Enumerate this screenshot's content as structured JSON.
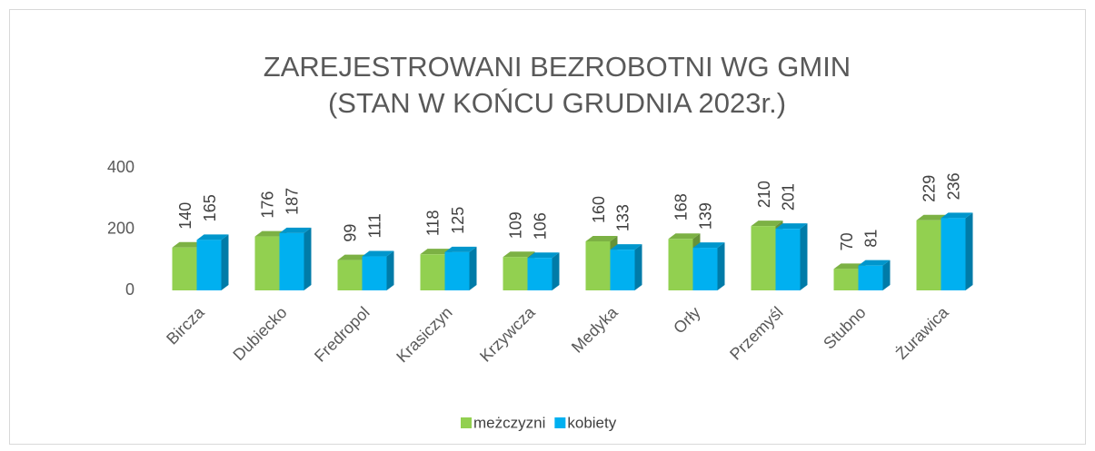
{
  "chart_data": {
    "type": "bar3d",
    "title": [
      "ZAREJESTROWANI BEZROBOTNI WG GMIN",
      "(STAN W KOŃCU GRUDNIA 2023r.)"
    ],
    "categories": [
      "Bircza",
      "Dubiecko",
      "Fredropol",
      "Krasiczyn",
      "Krzywcza",
      "Medyka",
      "Orły",
      "Przemyśl",
      "Stubno",
      "Żurawica"
    ],
    "series": [
      {
        "name": "meżczyzni",
        "color": "#92d050",
        "values": [
          140,
          176,
          99,
          118,
          109,
          160,
          168,
          210,
          70,
          229
        ]
      },
      {
        "name": "kobiety",
        "color": "#00b0f0",
        "values": [
          165,
          187,
          111,
          125,
          106,
          133,
          139,
          201,
          81,
          236
        ]
      }
    ],
    "ylim": [
      0,
      400
    ],
    "yticks": [
      0,
      200,
      400
    ],
    "grid": false,
    "legend": "bottom",
    "data_labels": true
  }
}
